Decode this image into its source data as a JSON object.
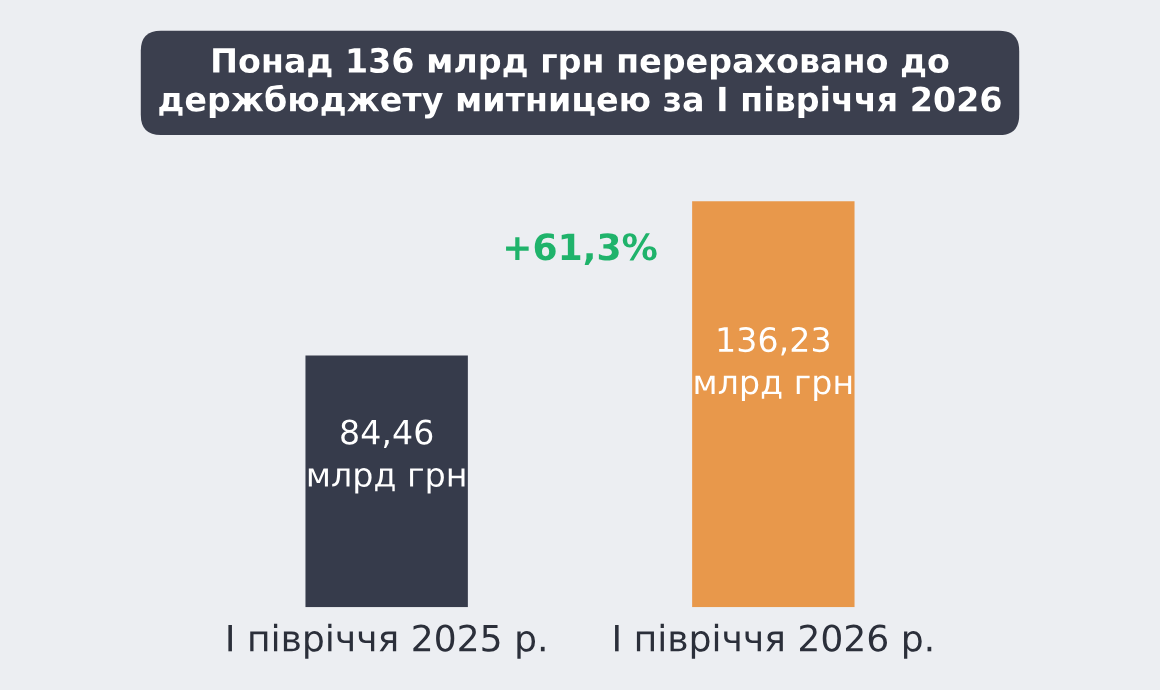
{
  "chart_data": {
    "type": "bar",
    "title": "Понад 136 млрд грн перераховано до держбюджету митницею за І півріччя 2026",
    "categories": [
      "І півріччя 2025 р.",
      "І півріччя 2026 р."
    ],
    "values": [
      84.46,
      136.23
    ],
    "colors": [
      "#363b4b",
      "#e8984b"
    ],
    "value_labels": [
      "84,46\nмлрд грн",
      "136,23\nмлрд грн"
    ],
    "annotations": [
      "+61,3%"
    ],
    "grid": false,
    "legend": false
  }
}
